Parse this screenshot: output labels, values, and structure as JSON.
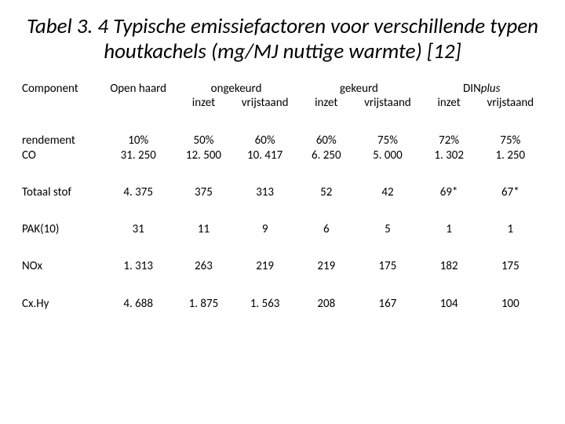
{
  "title": "Tabel 3. 4 Typische emissiefactoren voor verschillende typen houtkachels (mg/MJ nuttige warmte) [12]",
  "colors": {
    "text": "#000000",
    "background": "#ffffff"
  },
  "fonts": {
    "title_size_pt": 20,
    "title_style": "italic",
    "body_size_pt": 11,
    "family": "Calibri"
  },
  "header": {
    "component": "Component",
    "open_haard": "Open haard",
    "groups": {
      "ongekeurd": "ongekeurd",
      "gekeurd": "gekeurd",
      "dinplus_plain": "DIN",
      "dinplus_ital": "plus"
    },
    "sub": {
      "inzet": "inzet",
      "vrijstaand": "vrijstaand"
    }
  },
  "rows": [
    {
      "label": "rendement",
      "oh": "10%",
      "v": [
        "50%",
        "60%",
        "60%",
        "75%",
        "72%",
        "75%"
      ]
    },
    {
      "label": "CO",
      "oh": "31. 250",
      "v": [
        "12. 500",
        "10. 417",
        "6. 250",
        "5. 000",
        "1. 302",
        "1. 250"
      ]
    },
    {
      "label": "Totaal stof",
      "oh": "4. 375",
      "v": [
        "375",
        "313",
        "52",
        "42",
        "69*",
        "67*"
      ]
    },
    {
      "label": "PAK(10)",
      "oh": "31",
      "v": [
        "11",
        "9",
        "6",
        "5",
        "1",
        "1"
      ]
    },
    {
      "label": "NOx",
      "oh": "1. 313",
      "v": [
        "263",
        "219",
        "219",
        "175",
        "182",
        "175"
      ]
    },
    {
      "label": "Cx.Hy",
      "oh": "4. 688",
      "v": [
        "1. 875",
        "1. 563",
        "208",
        "167",
        "104",
        "100"
      ]
    }
  ]
}
